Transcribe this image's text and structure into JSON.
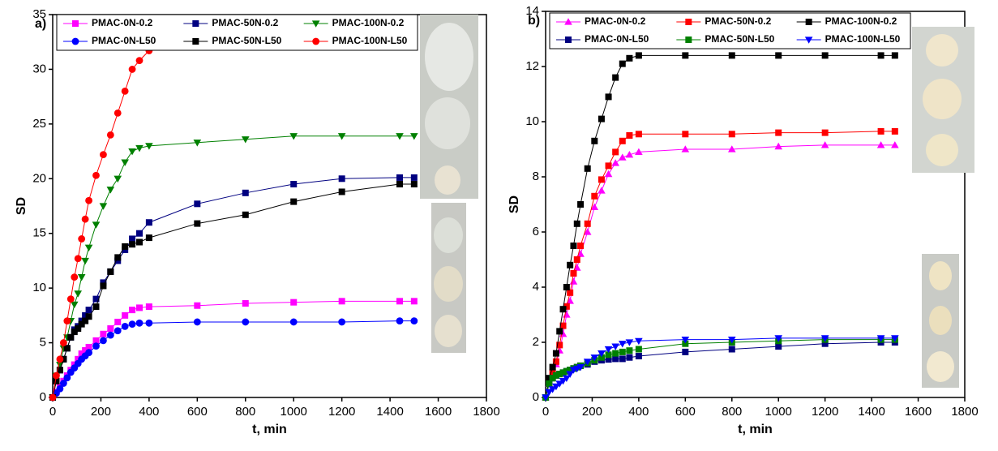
{
  "chart_data": [
    {
      "type": "line",
      "label": "a)",
      "xlabel": "t, min",
      "ylabel": "SD",
      "x": [
        0,
        15,
        30,
        45,
        60,
        75,
        90,
        105,
        120,
        135,
        150,
        180,
        210,
        240,
        270,
        300,
        330,
        360,
        400,
        600,
        800,
        1000,
        1200,
        1440,
        1500
      ],
      "xlim": [
        0,
        1800
      ],
      "xticks": [
        0,
        200,
        400,
        600,
        800,
        1000,
        1200,
        1400,
        1600,
        1800
      ],
      "ylim": [
        0,
        35
      ],
      "yticks": [
        0,
        5,
        10,
        15,
        20,
        25,
        30,
        35
      ],
      "series": [
        {
          "name": "PMAC-0N-0.2",
          "color": "#ff00ff",
          "marker": "square",
          "values": [
            0,
            0.5,
            1,
            1.5,
            2,
            2.5,
            3,
            3.5,
            4,
            4.3,
            4.6,
            5.2,
            5.8,
            6.3,
            6.9,
            7.5,
            8,
            8.2,
            8.3,
            8.4,
            8.6,
            8.7,
            8.8,
            8.8,
            8.8
          ]
        },
        {
          "name": "PMAC-50N-0.2",
          "color": "#000080",
          "marker": "square",
          "values": [
            0,
            1.5,
            2.5,
            3.5,
            4.5,
            5.5,
            6.2,
            6.5,
            7,
            7.5,
            8,
            9,
            10.5,
            11.5,
            12.5,
            13.5,
            14.5,
            15,
            16,
            17.7,
            18.7,
            19.5,
            20,
            20.1,
            20.1
          ]
        },
        {
          "name": "PMAC-100N-0.2",
          "color": "#008000",
          "marker": "triangle-down",
          "values": [
            0,
            2,
            3,
            4.5,
            5.5,
            7,
            8.5,
            9.5,
            11,
            12.5,
            13.7,
            15.8,
            17.5,
            19,
            20,
            21.5,
            22.5,
            22.8,
            23,
            23.3,
            23.6,
            23.9,
            23.9,
            23.9,
            23.9
          ]
        },
        {
          "name": "PMAC-0N-L50",
          "color": "#0000ff",
          "marker": "circle",
          "values": [
            0,
            0.4,
            0.8,
            1.3,
            1.8,
            2.3,
            2.7,
            3.1,
            3.5,
            3.8,
            4.1,
            4.7,
            5.2,
            5.7,
            6.1,
            6.5,
            6.7,
            6.8,
            6.8,
            6.9,
            6.9,
            6.9,
            6.9,
            7,
            7
          ]
        },
        {
          "name": "PMAC-50N-L50",
          "color": "#000000",
          "marker": "square",
          "values": [
            0,
            1.5,
            2.5,
            3.5,
            4.5,
            5.5,
            6,
            6.3,
            6.7,
            7,
            7.4,
            8.3,
            10.2,
            11.5,
            12.8,
            13.8,
            14,
            14.2,
            14.6,
            15.9,
            16.7,
            17.9,
            18.8,
            19.5,
            19.5
          ]
        },
        {
          "name": "PMAC-100N-L50",
          "color": "#ff0000",
          "marker": "circle",
          "values": [
            0,
            2,
            3.5,
            5,
            7,
            9,
            11,
            12.7,
            14.5,
            16.3,
            18,
            20.3,
            22.2,
            24,
            26,
            28,
            30,
            30.8,
            31.7,
            32.6,
            33,
            33.2,
            33.5,
            33.6,
            33.6
          ]
        }
      ]
    },
    {
      "type": "line",
      "label": "b)",
      "xlabel": "t, min",
      "ylabel": "SD",
      "x": [
        0,
        15,
        30,
        45,
        60,
        75,
        90,
        105,
        120,
        135,
        150,
        180,
        210,
        240,
        270,
        300,
        330,
        360,
        400,
        600,
        800,
        1000,
        1200,
        1440,
        1500
      ],
      "xlim": [
        0,
        1800
      ],
      "xticks": [
        0,
        200,
        400,
        600,
        800,
        1000,
        1200,
        1400,
        1600,
        1800
      ],
      "ylim": [
        0,
        14
      ],
      "yticks": [
        0,
        2,
        4,
        6,
        8,
        10,
        12,
        14
      ],
      "series": [
        {
          "name": "PMAC-0N-0.2",
          "color": "#ff00ff",
          "marker": "triangle",
          "values": [
            0,
            0.5,
            0.8,
            1.2,
            1.7,
            2.3,
            3,
            3.5,
            4.2,
            4.7,
            5.2,
            6,
            6.9,
            7.5,
            8.1,
            8.5,
            8.7,
            8.8,
            8.9,
            9,
            9,
            9.1,
            9.15,
            9.15,
            9.15
          ]
        },
        {
          "name": "PMAC-50N-0.2",
          "color": "#ff0000",
          "marker": "square",
          "values": [
            0,
            0.6,
            0.9,
            1.3,
            1.9,
            2.6,
            3.3,
            3.8,
            4.5,
            5,
            5.5,
            6.3,
            7.3,
            7.9,
            8.4,
            8.9,
            9.3,
            9.5,
            9.55,
            9.55,
            9.55,
            9.6,
            9.6,
            9.65,
            9.65
          ]
        },
        {
          "name": "PMAC-100N-0.2",
          "color": "#000000",
          "marker": "square",
          "values": [
            0,
            0.7,
            1.1,
            1.6,
            2.4,
            3.2,
            4,
            4.8,
            5.5,
            6.3,
            7,
            8.3,
            9.3,
            10.1,
            10.9,
            11.6,
            12.1,
            12.3,
            12.4,
            12.4,
            12.4,
            12.4,
            12.4,
            12.4,
            12.4
          ]
        },
        {
          "name": "PMAC-0N-L50",
          "color": "#000080",
          "marker": "square",
          "values": [
            0,
            0.5,
            0.7,
            0.8,
            0.85,
            0.9,
            0.95,
            1,
            1.05,
            1.1,
            1.15,
            1.2,
            1.3,
            1.35,
            1.38,
            1.4,
            1.4,
            1.45,
            1.5,
            1.65,
            1.75,
            1.85,
            1.95,
            2,
            2
          ]
        },
        {
          "name": "PMAC-50N-L50",
          "color": "#008000",
          "marker": "square",
          "values": [
            0,
            0.5,
            0.7,
            0.8,
            0.85,
            0.9,
            0.95,
            1,
            1.05,
            1.1,
            1.15,
            1.25,
            1.35,
            1.45,
            1.55,
            1.6,
            1.65,
            1.7,
            1.75,
            1.95,
            2,
            2.05,
            2.1,
            2.1,
            2.1
          ]
        },
        {
          "name": "PMAC-100N-L50",
          "color": "#0000ff",
          "marker": "triangle-down",
          "values": [
            0,
            0.2,
            0.3,
            0.4,
            0.5,
            0.6,
            0.7,
            0.85,
            1,
            1.05,
            1.1,
            1.3,
            1.45,
            1.6,
            1.75,
            1.85,
            1.95,
            2,
            2.05,
            2.1,
            2.1,
            2.15,
            2.15,
            2.15,
            2.15
          ]
        }
      ]
    }
  ]
}
